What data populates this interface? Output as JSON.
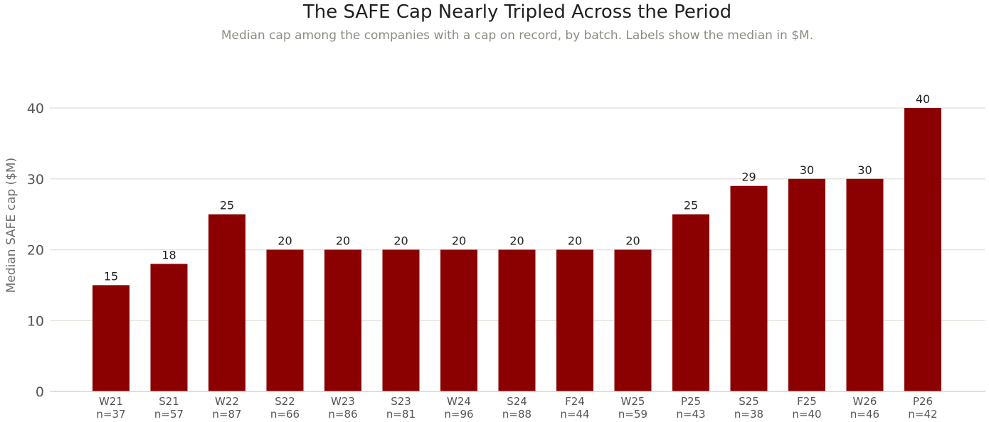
{
  "chart_data": {
    "type": "bar",
    "title": "The SAFE Cap Nearly Tripled Across the Period",
    "subtitle": "Median cap among the companies with a cap on record, by batch. Labels show the median in $M.",
    "xlabel": "",
    "ylabel": "Median SAFE cap ($M)",
    "categories": [
      "W21",
      "S21",
      "W22",
      "S22",
      "W23",
      "S23",
      "W24",
      "S24",
      "F24",
      "W25",
      "P25",
      "S25",
      "F25",
      "W26",
      "P26"
    ],
    "sample_sizes": [
      "n=37",
      "n=57",
      "n=87",
      "n=66",
      "n=86",
      "n=81",
      "n=96",
      "n=88",
      "n=44",
      "n=59",
      "n=43",
      "n=38",
      "n=40",
      "n=46",
      "n=42"
    ],
    "values": [
      15,
      18,
      25,
      20,
      20,
      20,
      20,
      20,
      20,
      20,
      25,
      29,
      30,
      30,
      40
    ],
    "ylim": [
      0,
      40
    ],
    "yticks": [
      0,
      10,
      20,
      30,
      40
    ],
    "grid": true,
    "legend": "none",
    "colors": {
      "bar": "#8b0000",
      "grid": "#e6e4dc",
      "axis": "#d6d3c8"
    }
  }
}
